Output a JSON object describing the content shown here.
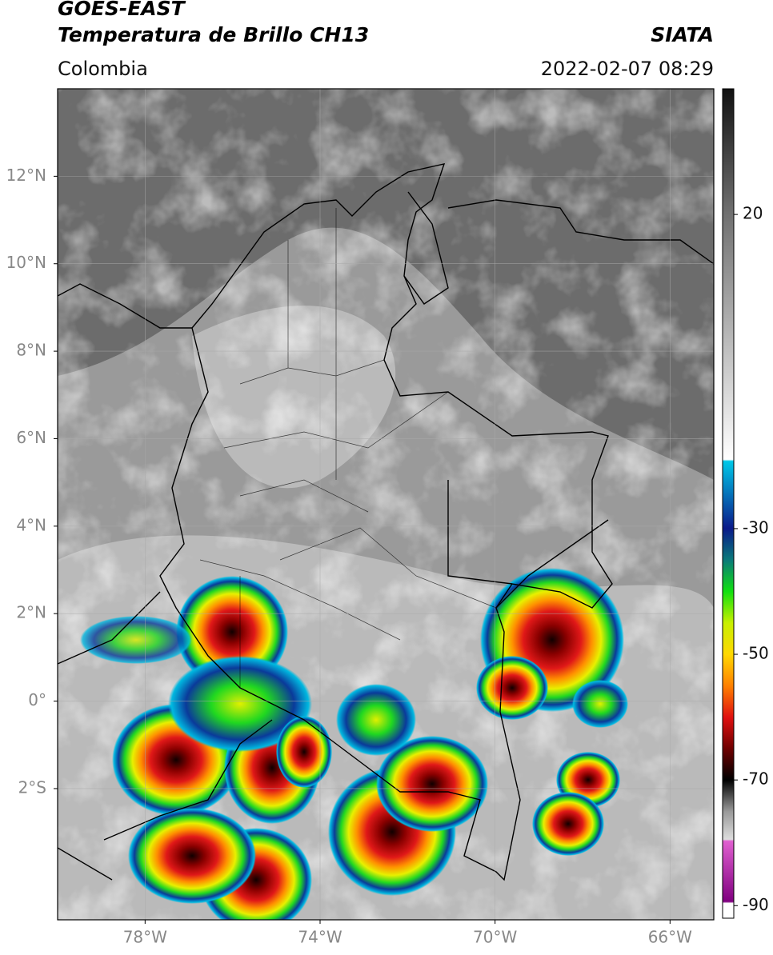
{
  "header": {
    "title": "GOES-EAST",
    "subtitle": "Temperatura de Brillo CH13",
    "region": "Colombia",
    "source": "SIATA",
    "datetime": "2022-02-07 08:29"
  },
  "map": {
    "lonlim": [
      -80,
      -65
    ],
    "latlim": [
      -5,
      14
    ],
    "grid": true,
    "lonticks": [
      {
        "value": -78,
        "label": "78°W"
      },
      {
        "value": -74,
        "label": "74°W"
      },
      {
        "value": -70,
        "label": "70°W"
      },
      {
        "value": -66,
        "label": "66°W"
      }
    ],
    "latticks": [
      {
        "value": 12,
        "label": "12°N"
      },
      {
        "value": 10,
        "label": "10°N"
      },
      {
        "value": 8,
        "label": "8°N"
      },
      {
        "value": 6,
        "label": "6°N"
      },
      {
        "value": 4,
        "label": "4°N"
      },
      {
        "value": 2,
        "label": "2°N"
      },
      {
        "value": 0,
        "label": "0°"
      },
      {
        "value": -2,
        "label": "2°S"
      }
    ]
  },
  "colorbar": {
    "lim": [
      -92,
      40
    ],
    "ticks": [
      20,
      -30,
      -50,
      -70,
      -90
    ]
  }
}
